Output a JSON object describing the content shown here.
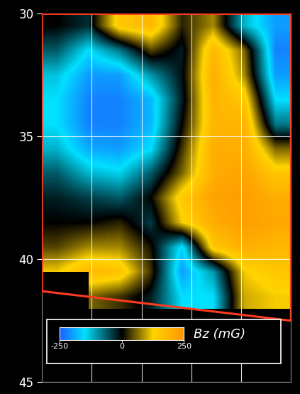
{
  "chart_data": {
    "type": "heatmap",
    "ylim": [
      45,
      30
    ],
    "yticks": [
      30,
      35,
      40,
      45
    ],
    "grid": true,
    "tick_labels": "y",
    "cell_y_range": [
      30,
      42
    ],
    "cells": [
      [
        0,
        -30,
        150,
        180,
        20,
        80,
        -120,
        -200
      ],
      [
        -60,
        -150,
        -80,
        40,
        -20,
        180,
        60,
        -220
      ],
      [
        -130,
        -200,
        -200,
        -100,
        -10,
        200,
        80,
        -200
      ],
      [
        -150,
        -220,
        -220,
        -180,
        -20,
        190,
        150,
        -150
      ],
      [
        -150,
        -220,
        -220,
        -180,
        0,
        180,
        190,
        -80
      ],
      [
        -120,
        -190,
        -200,
        -150,
        30,
        200,
        200,
        60
      ],
      [
        -60,
        -120,
        -140,
        -60,
        60,
        200,
        220,
        150
      ],
      [
        -20,
        -40,
        -60,
        0,
        150,
        220,
        230,
        200
      ],
      [
        0,
        0,
        20,
        -40,
        120,
        200,
        230,
        210
      ],
      [
        40,
        80,
        80,
        10,
        -160,
        150,
        200,
        180
      ],
      [
        120,
        180,
        160,
        30,
        -200,
        -100,
        120,
        150
      ],
      [
        null,
        60,
        30,
        -20,
        -150,
        -150,
        100,
        120
      ]
    ],
    "colorbar": {
      "label": "Bz (mG)",
      "range": [
        -250,
        250
      ],
      "ticks": [
        -250,
        0,
        250
      ]
    }
  }
}
